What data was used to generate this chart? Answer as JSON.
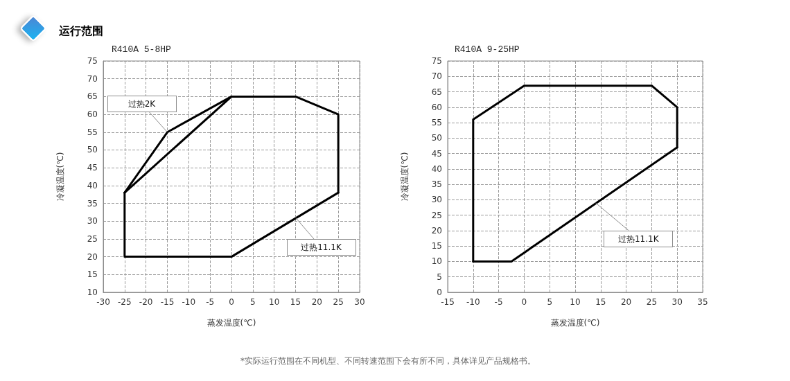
{
  "chart_data": [
    {
      "type": "line",
      "title": "运行范围",
      "subtitle": "R410A 5-8HP",
      "xlabel": "蒸发温度(℃)",
      "ylabel": "冷凝温度(℃)",
      "series": [
        {
          "color": "#000000",
          "x": [
            -25,
            0,
            15,
            25,
            25
          ],
          "values": [
            38,
            65,
            65,
            60,
            38
          ]
        },
        {
          "color": "#000000",
          "x": [
            -25,
            -25,
            0,
            25
          ],
          "values": [
            38,
            20,
            20,
            38
          ]
        },
        {
          "color": "#000000",
          "x": [
            -25,
            -15,
            0
          ],
          "values": [
            38,
            55,
            65
          ]
        }
      ],
      "xlim": [
        -30,
        30
      ],
      "xticks": [
        -30,
        -25,
        -20,
        -15,
        -10,
        -5,
        0,
        5,
        10,
        15,
        20,
        25,
        30
      ],
      "ylim": [
        10,
        75
      ],
      "yticks": [
        10,
        15,
        20,
        25,
        30,
        35,
        40,
        45,
        50,
        55,
        60,
        65,
        70,
        75
      ],
      "grid": true,
      "marker": "none",
      "line_style": "solid",
      "annotations": [
        {
          "text": "过热2K",
          "x": -15,
          "y": 55
        },
        {
          "text": "过热11.1K",
          "x": 15,
          "y": 31
        },
        "*实际运行范围在不同机型、不同转速范围下会有所不同，具体详见产品规格书。"
      ]
    },
    {
      "type": "line",
      "subtitle": "R410A 9-25HP",
      "xlabel": "蒸发温度(℃)",
      "ylabel": "冷凝温度(℃)",
      "series": [
        {
          "color": "#000000",
          "x": [
            -10,
            -10,
            0,
            25,
            30,
            30
          ],
          "values": [
            10,
            56,
            67,
            67,
            60,
            47
          ]
        },
        {
          "color": "#000000",
          "x": [
            -10,
            -2.5,
            30
          ],
          "values": [
            10,
            10,
            47
          ]
        }
      ],
      "xlim": [
        -15,
        35
      ],
      "xticks": [
        -15,
        -10,
        -5,
        0,
        5,
        10,
        15,
        20,
        25,
        30,
        35
      ],
      "ylim": [
        0,
        75
      ],
      "yticks": [
        0,
        5,
        10,
        15,
        20,
        25,
        30,
        35,
        40,
        45,
        50,
        55,
        60,
        65,
        70,
        75
      ],
      "grid": true,
      "marker": "none",
      "line_style": "solid",
      "annotations": [
        {
          "text": "过热11.1K",
          "x": 14,
          "y": 29
        }
      ]
    }
  ]
}
